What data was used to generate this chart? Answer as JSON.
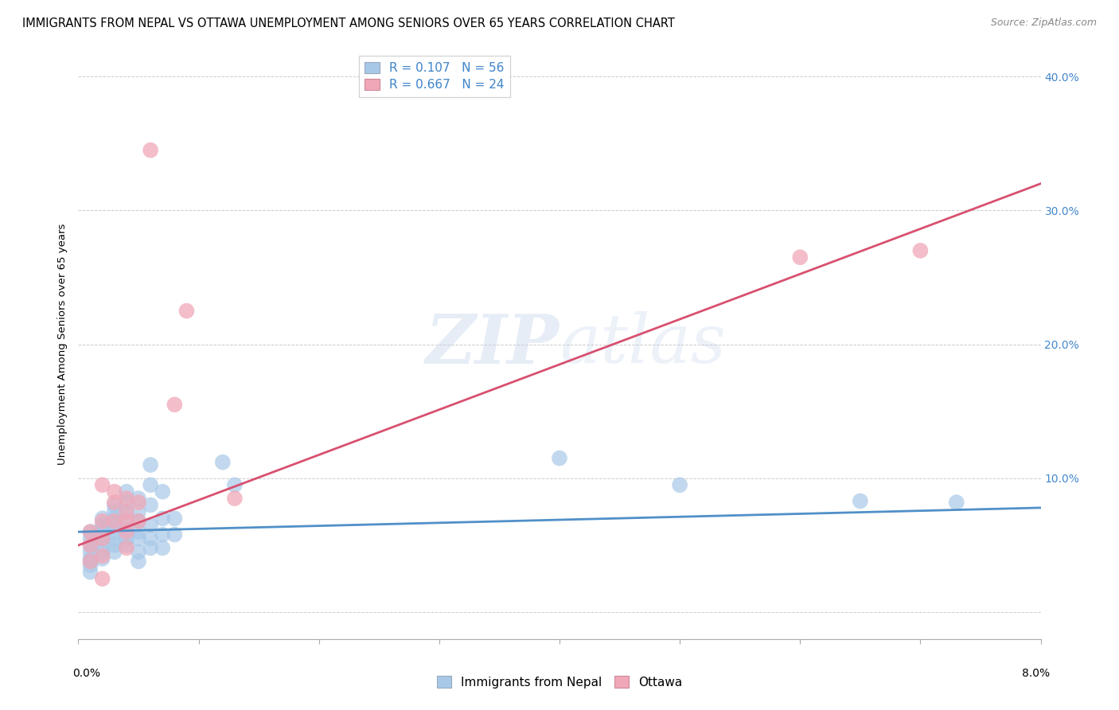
{
  "title": "IMMIGRANTS FROM NEPAL VS OTTAWA UNEMPLOYMENT AMONG SENIORS OVER 65 YEARS CORRELATION CHART",
  "source": "Source: ZipAtlas.com",
  "ylabel": "Unemployment Among Seniors over 65 years",
  "watermark_zip": "ZIP",
  "watermark_atlas": "atlas",
  "blue_scatter": [
    [
      0.001,
      0.06
    ],
    [
      0.001,
      0.055
    ],
    [
      0.001,
      0.05
    ],
    [
      0.001,
      0.045
    ],
    [
      0.001,
      0.04
    ],
    [
      0.001,
      0.038
    ],
    [
      0.001,
      0.035
    ],
    [
      0.001,
      0.03
    ],
    [
      0.002,
      0.07
    ],
    [
      0.002,
      0.065
    ],
    [
      0.002,
      0.062
    ],
    [
      0.002,
      0.058
    ],
    [
      0.002,
      0.055
    ],
    [
      0.002,
      0.05
    ],
    [
      0.002,
      0.045
    ],
    [
      0.002,
      0.04
    ],
    [
      0.003,
      0.08
    ],
    [
      0.003,
      0.075
    ],
    [
      0.003,
      0.07
    ],
    [
      0.003,
      0.065
    ],
    [
      0.003,
      0.06
    ],
    [
      0.003,
      0.055
    ],
    [
      0.003,
      0.05
    ],
    [
      0.003,
      0.045
    ],
    [
      0.004,
      0.09
    ],
    [
      0.004,
      0.082
    ],
    [
      0.004,
      0.075
    ],
    [
      0.004,
      0.068
    ],
    [
      0.004,
      0.062
    ],
    [
      0.004,
      0.055
    ],
    [
      0.004,
      0.05
    ],
    [
      0.005,
      0.085
    ],
    [
      0.005,
      0.075
    ],
    [
      0.005,
      0.068
    ],
    [
      0.005,
      0.06
    ],
    [
      0.005,
      0.055
    ],
    [
      0.005,
      0.045
    ],
    [
      0.005,
      0.038
    ],
    [
      0.006,
      0.11
    ],
    [
      0.006,
      0.095
    ],
    [
      0.006,
      0.08
    ],
    [
      0.006,
      0.065
    ],
    [
      0.006,
      0.055
    ],
    [
      0.006,
      0.048
    ],
    [
      0.007,
      0.09
    ],
    [
      0.007,
      0.07
    ],
    [
      0.007,
      0.058
    ],
    [
      0.007,
      0.048
    ],
    [
      0.008,
      0.07
    ],
    [
      0.008,
      0.058
    ],
    [
      0.012,
      0.112
    ],
    [
      0.013,
      0.095
    ],
    [
      0.04,
      0.115
    ],
    [
      0.05,
      0.095
    ],
    [
      0.065,
      0.083
    ],
    [
      0.073,
      0.082
    ]
  ],
  "pink_scatter": [
    [
      0.001,
      0.06
    ],
    [
      0.001,
      0.05
    ],
    [
      0.001,
      0.038
    ],
    [
      0.002,
      0.095
    ],
    [
      0.002,
      0.068
    ],
    [
      0.002,
      0.055
    ],
    [
      0.002,
      0.042
    ],
    [
      0.002,
      0.025
    ],
    [
      0.003,
      0.09
    ],
    [
      0.003,
      0.082
    ],
    [
      0.003,
      0.068
    ],
    [
      0.004,
      0.085
    ],
    [
      0.004,
      0.075
    ],
    [
      0.004,
      0.068
    ],
    [
      0.004,
      0.06
    ],
    [
      0.004,
      0.048
    ],
    [
      0.005,
      0.082
    ],
    [
      0.005,
      0.068
    ],
    [
      0.006,
      0.345
    ],
    [
      0.008,
      0.155
    ],
    [
      0.009,
      0.225
    ],
    [
      0.013,
      0.085
    ],
    [
      0.06,
      0.265
    ],
    [
      0.07,
      0.27
    ]
  ],
  "blue_line_x": [
    0.0,
    0.08
  ],
  "blue_line_y": [
    0.06,
    0.078
  ],
  "pink_line_x": [
    0.0,
    0.08
  ],
  "pink_line_y": [
    0.05,
    0.32
  ],
  "xlim": [
    0.0,
    0.08
  ],
  "ylim": [
    -0.02,
    0.42
  ],
  "yticks": [
    0.0,
    0.1,
    0.2,
    0.3,
    0.4
  ],
  "right_ytick_labels": [
    "",
    "10.0%",
    "20.0%",
    "30.0%",
    "40.0%"
  ],
  "blue_color": "#a8c8e8",
  "pink_color": "#f0a8b8",
  "blue_line_color": "#5090c8",
  "pink_line_color": "#d85070",
  "grid_color": "#cccccc",
  "title_fontsize": 10.5,
  "source_fontsize": 9,
  "watermark_color_zip": "#b8cce8",
  "watermark_color_atlas": "#b8cce8"
}
